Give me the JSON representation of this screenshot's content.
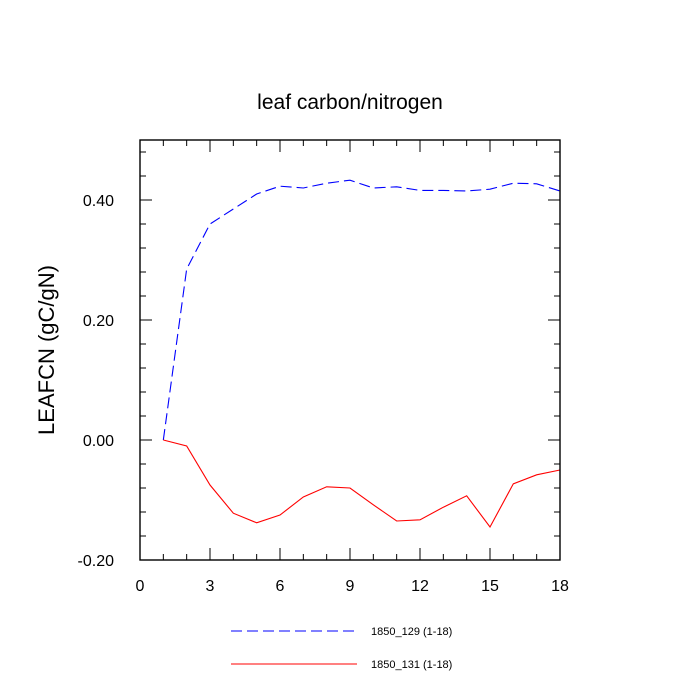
{
  "chart_data": {
    "type": "line",
    "title": "leaf carbon/nitrogen",
    "xlabel": "",
    "ylabel": "LEAFCN  (gC/gN)",
    "xlim": [
      0,
      18
    ],
    "ylim": [
      -0.2,
      0.5
    ],
    "xticks": [
      "0",
      "3",
      "6",
      "9",
      "12",
      "15",
      "18"
    ],
    "yticks": [
      "-0.20",
      "0.00",
      "0.20",
      "0.40"
    ],
    "grid": false,
    "legend": "bottom",
    "x": [
      1,
      2,
      3,
      4,
      5,
      6,
      7,
      8,
      9,
      10,
      11,
      12,
      13,
      14,
      15,
      16,
      17,
      18
    ],
    "series": [
      {
        "name": "1850_129 (1-18)",
        "color": "#0000ff",
        "style": "dashed",
        "values": [
          0.0,
          0.285,
          0.36,
          0.385,
          0.41,
          0.423,
          0.42,
          0.428,
          0.433,
          0.42,
          0.422,
          0.416,
          0.416,
          0.415,
          0.418,
          0.428,
          0.427,
          0.415
        ]
      },
      {
        "name": "1850_131 (1-18)",
        "color": "#ff0000",
        "style": "solid",
        "values": [
          0.0,
          -0.01,
          -0.075,
          -0.122,
          -0.138,
          -0.125,
          -0.095,
          -0.078,
          -0.08,
          -0.108,
          -0.135,
          -0.133,
          -0.112,
          -0.093,
          -0.145,
          -0.073,
          -0.058,
          -0.05
        ]
      }
    ]
  }
}
